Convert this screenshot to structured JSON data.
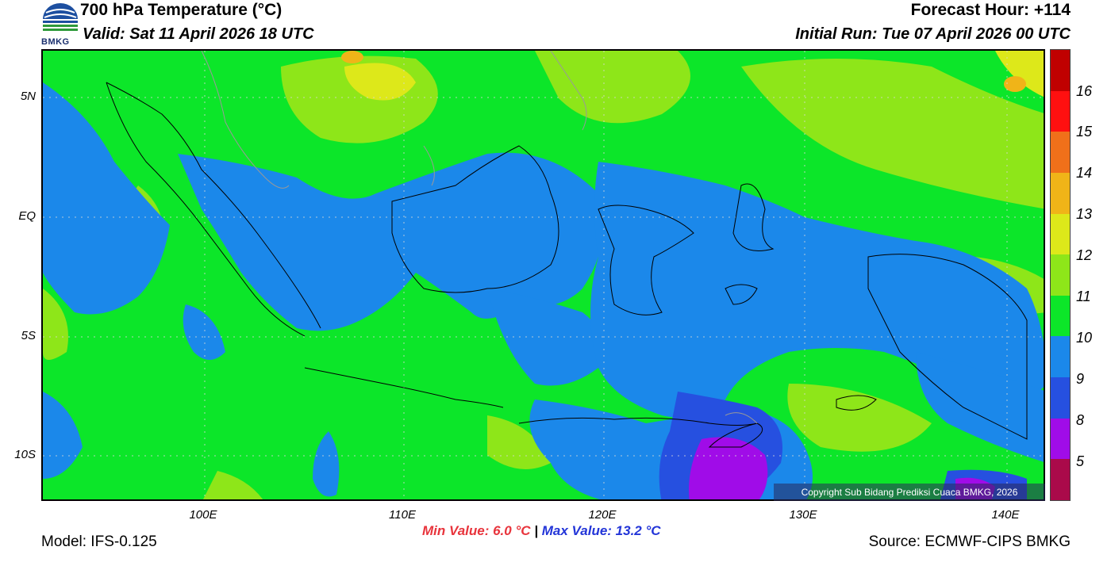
{
  "header": {
    "title": "700 hPa Temperature (°C)",
    "valid": "Valid: Sat 11 April 2026 18 UTC",
    "forecast_hour": "Forecast Hour: +114",
    "initial_run": "Initial Run: Tue 07 April 2026 00 UTC",
    "logo_text": "BMKG"
  },
  "map": {
    "lat_labels": [
      "5N",
      "EQ",
      "5S",
      "10S"
    ],
    "lon_labels": [
      "100E",
      "110E",
      "120E",
      "130E",
      "140E"
    ],
    "copyright": "Copyright Sub Bidang Prediksi Cuaca BMKG, 2026"
  },
  "colorbar": {
    "labels": [
      "16",
      "15",
      "14",
      "13",
      "12",
      "11",
      "10",
      "9",
      "8",
      "5"
    ],
    "colors": [
      "#c00000",
      "#ff1010",
      "#f0701a",
      "#f0b418",
      "#dde81a",
      "#8ee619",
      "#0ce629",
      "#1b88ea",
      "#2650e0",
      "#a00ce8",
      "#aa0a4a"
    ]
  },
  "footer": {
    "model": "Model: IFS-0.125",
    "min_value": "Min Value: 6.0 °C",
    "separator": "|",
    "max_value": "Max Value: 13.2 °C",
    "source": "Source: ECMWF-CIPS BMKG"
  }
}
